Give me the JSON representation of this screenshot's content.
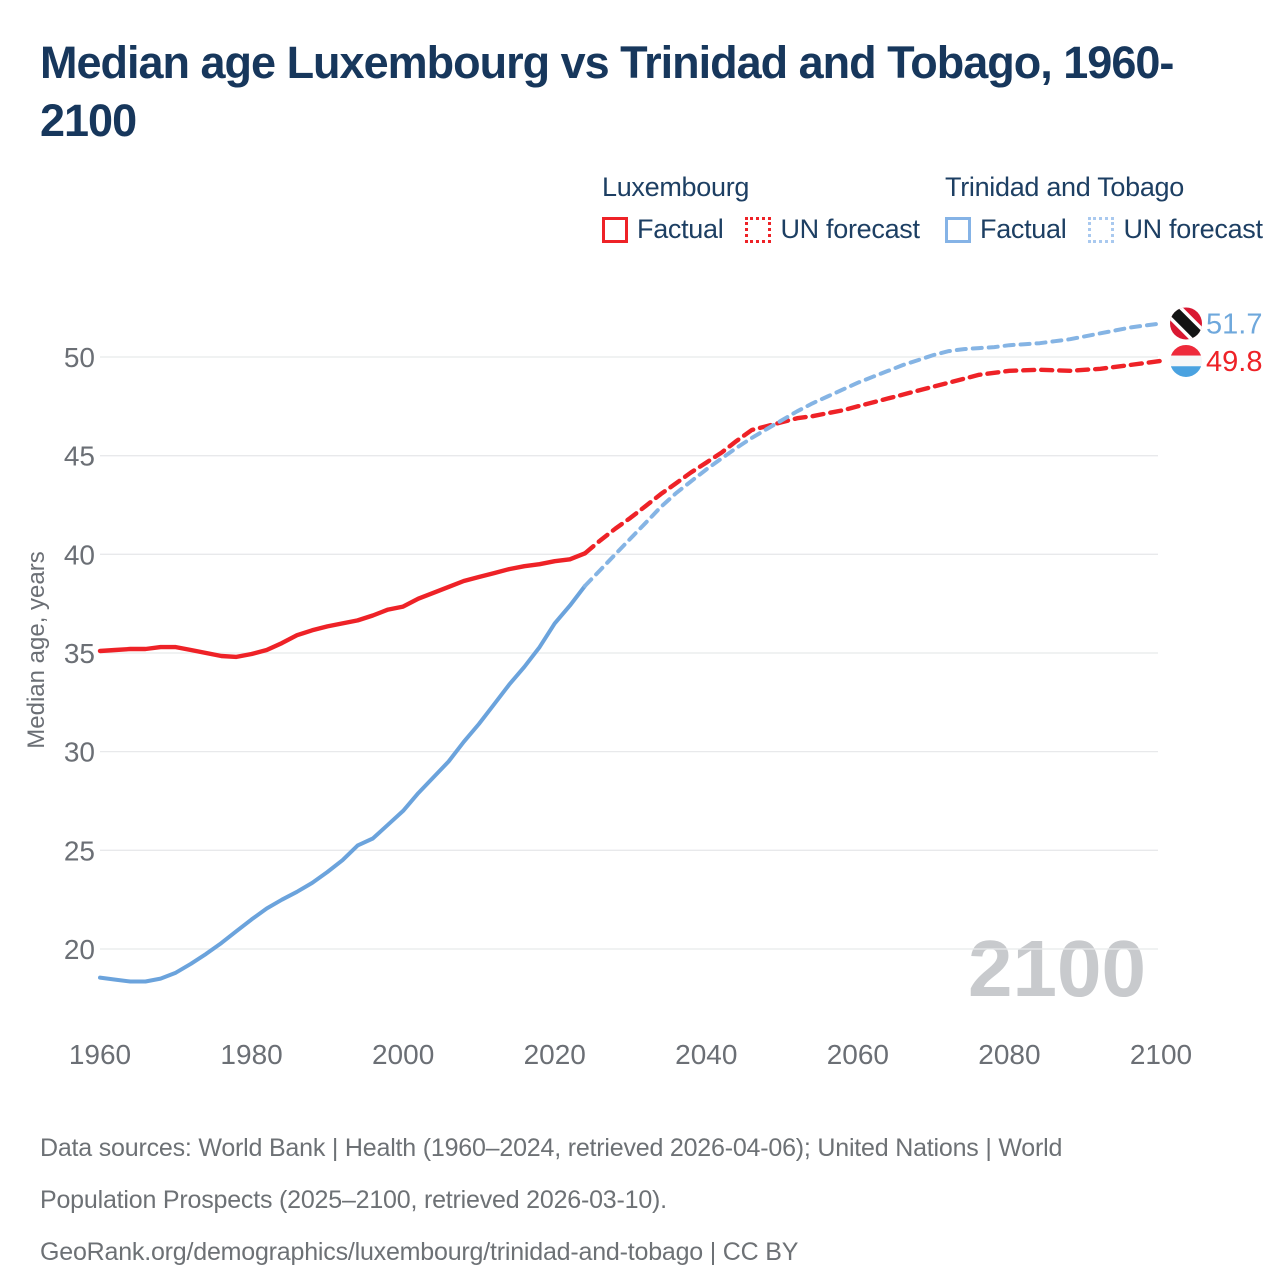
{
  "title": {
    "lines": [
      "Median age Luxembourg vs Trinidad and Tobago, 1960-",
      "2100"
    ]
  },
  "legend": {
    "groups": [
      {
        "label": "Luxembourg",
        "factual_label": "Factual",
        "forecast_label": "UN forecast",
        "factual_color": "#ee2227",
        "forecast_color": "#ee2227"
      },
      {
        "label": "Trinidad and Tobago",
        "factual_label": "Factual",
        "forecast_label": "UN forecast",
        "factual_color": "#85b3e6",
        "forecast_color": "#a9c9ef"
      }
    ]
  },
  "chart_data": {
    "type": "line",
    "xlabel": "",
    "ylabel": "Median age, years",
    "x_ticks": [
      1960,
      1980,
      2000,
      2020,
      2040,
      2060,
      2080,
      2100
    ],
    "y_ticks": [
      20,
      25,
      30,
      35,
      40,
      45,
      50
    ],
    "xlim": [
      1960,
      2100
    ],
    "ylim": [
      17,
      53
    ],
    "grid": "horizontal",
    "legend_position": "top-right",
    "watermark": "2100",
    "series": [
      {
        "name": "Luxembourg Factual",
        "key": "luxembourg-factual",
        "style": "solid",
        "color": "#ee2227",
        "width": 4.4,
        "points": [
          [
            1960,
            35.1
          ],
          [
            1962,
            35.15
          ],
          [
            1964,
            35.2
          ],
          [
            1966,
            35.2
          ],
          [
            1968,
            35.3
          ],
          [
            1970,
            35.3
          ],
          [
            1972,
            35.15
          ],
          [
            1974,
            35.0
          ],
          [
            1976,
            34.85
          ],
          [
            1978,
            34.8
          ],
          [
            1980,
            34.95
          ],
          [
            1982,
            35.15
          ],
          [
            1984,
            35.5
          ],
          [
            1986,
            35.9
          ],
          [
            1988,
            36.15
          ],
          [
            1990,
            36.35
          ],
          [
            1992,
            36.5
          ],
          [
            1994,
            36.65
          ],
          [
            1996,
            36.9
          ],
          [
            1998,
            37.2
          ],
          [
            2000,
            37.35
          ],
          [
            2002,
            37.75
          ],
          [
            2004,
            38.05
          ],
          [
            2006,
            38.35
          ],
          [
            2008,
            38.65
          ],
          [
            2010,
            38.85
          ],
          [
            2012,
            39.05
          ],
          [
            2014,
            39.25
          ],
          [
            2016,
            39.4
          ],
          [
            2018,
            39.5
          ],
          [
            2020,
            39.65
          ],
          [
            2022,
            39.75
          ],
          [
            2024,
            40.05
          ]
        ]
      },
      {
        "name": "Luxembourg UN forecast",
        "key": "luxembourg-forecast",
        "style": "dashed",
        "color": "#ee2227",
        "width": 4.4,
        "dash": "11 7",
        "points": [
          [
            2024,
            40.05
          ],
          [
            2026,
            40.7
          ],
          [
            2028,
            41.3
          ],
          [
            2030,
            41.85
          ],
          [
            2032,
            42.45
          ],
          [
            2034,
            43.05
          ],
          [
            2036,
            43.6
          ],
          [
            2038,
            44.15
          ],
          [
            2040,
            44.65
          ],
          [
            2042,
            45.15
          ],
          [
            2044,
            45.75
          ],
          [
            2046,
            46.3
          ],
          [
            2048,
            46.5
          ],
          [
            2050,
            46.7
          ],
          [
            2052,
            46.9
          ],
          [
            2054,
            47.0
          ],
          [
            2056,
            47.15
          ],
          [
            2058,
            47.3
          ],
          [
            2060,
            47.5
          ],
          [
            2062,
            47.7
          ],
          [
            2064,
            47.9
          ],
          [
            2066,
            48.1
          ],
          [
            2068,
            48.3
          ],
          [
            2070,
            48.5
          ],
          [
            2072,
            48.7
          ],
          [
            2074,
            48.9
          ],
          [
            2076,
            49.1
          ],
          [
            2078,
            49.2
          ],
          [
            2080,
            49.3
          ],
          [
            2084,
            49.35
          ],
          [
            2088,
            49.3
          ],
          [
            2092,
            49.4
          ],
          [
            2096,
            49.6
          ],
          [
            2100,
            49.8
          ]
        ]
      },
      {
        "name": "Trinidad and Tobago Factual",
        "key": "trinidad-and-tobago-factual",
        "style": "solid",
        "color": "#6ba3dc",
        "width": 4,
        "points": [
          [
            1960,
            18.55
          ],
          [
            1962,
            18.45
          ],
          [
            1964,
            18.35
          ],
          [
            1966,
            18.35
          ],
          [
            1968,
            18.5
          ],
          [
            1970,
            18.8
          ],
          [
            1972,
            19.25
          ],
          [
            1974,
            19.75
          ],
          [
            1976,
            20.3
          ],
          [
            1978,
            20.9
          ],
          [
            1980,
            21.5
          ],
          [
            1982,
            22.05
          ],
          [
            1984,
            22.5
          ],
          [
            1986,
            22.9
          ],
          [
            1988,
            23.35
          ],
          [
            1990,
            23.9
          ],
          [
            1992,
            24.5
          ],
          [
            1994,
            25.25
          ],
          [
            1996,
            25.6
          ],
          [
            1998,
            26.3
          ],
          [
            2000,
            27.0
          ],
          [
            2002,
            27.9
          ],
          [
            2004,
            28.7
          ],
          [
            2006,
            29.5
          ],
          [
            2008,
            30.5
          ],
          [
            2010,
            31.4
          ],
          [
            2012,
            32.4
          ],
          [
            2014,
            33.4
          ],
          [
            2016,
            34.3
          ],
          [
            2018,
            35.3
          ],
          [
            2020,
            36.5
          ],
          [
            2022,
            37.4
          ],
          [
            2024,
            38.4
          ]
        ]
      },
      {
        "name": "Trinidad and Tobago UN forecast",
        "key": "trinidad-and-tobago-forecast",
        "style": "dashed",
        "color": "#85b4e4",
        "width": 4,
        "dash": "9 7",
        "points": [
          [
            2024,
            38.4
          ],
          [
            2026,
            39.2
          ],
          [
            2028,
            40.0
          ],
          [
            2030,
            40.8
          ],
          [
            2032,
            41.6
          ],
          [
            2034,
            42.4
          ],
          [
            2036,
            43.1
          ],
          [
            2038,
            43.7
          ],
          [
            2040,
            44.3
          ],
          [
            2042,
            44.85
          ],
          [
            2044,
            45.4
          ],
          [
            2046,
            45.9
          ],
          [
            2048,
            46.35
          ],
          [
            2050,
            46.8
          ],
          [
            2052,
            47.25
          ],
          [
            2054,
            47.65
          ],
          [
            2056,
            48.0
          ],
          [
            2058,
            48.35
          ],
          [
            2060,
            48.7
          ],
          [
            2062,
            49.0
          ],
          [
            2064,
            49.3
          ],
          [
            2066,
            49.6
          ],
          [
            2068,
            49.85
          ],
          [
            2070,
            50.1
          ],
          [
            2072,
            50.3
          ],
          [
            2074,
            50.4
          ],
          [
            2076,
            50.45
          ],
          [
            2078,
            50.5
          ],
          [
            2080,
            50.6
          ],
          [
            2082,
            50.65
          ],
          [
            2084,
            50.7
          ],
          [
            2086,
            50.8
          ],
          [
            2088,
            50.9
          ],
          [
            2090,
            51.05
          ],
          [
            2092,
            51.2
          ],
          [
            2094,
            51.35
          ],
          [
            2096,
            51.5
          ],
          [
            2098,
            51.6
          ],
          [
            2100,
            51.7
          ]
        ]
      }
    ],
    "end_labels": [
      {
        "flag": "trinidad-and-tobago",
        "value": "51.7",
        "color": "#6fa8dc"
      },
      {
        "flag": "luxembourg",
        "value": "49.8",
        "color": "#ee2227"
      }
    ],
    "flags": {
      "trinidad-and-tobago": {
        "field": "#d91832",
        "band": "#141414",
        "fimbriation": "#ffffff"
      },
      "luxembourg": {
        "top": "#ee2a3b",
        "middle": "#f6f7f8",
        "bottom": "#4aa2e0"
      }
    }
  },
  "footer": {
    "lines": [
      "Data sources: World Bank | Health (1960–2024, retrieved 2026-04-06); United Nations | World",
      "Population Prospects (2025–2100, retrieved 2026-03-10).",
      "GeoRank.org/demographics/luxembourg/trinidad-and-tobago | CC BY"
    ]
  },
  "colors": {
    "title_text": "#17375c",
    "legend_text": "#1d3f63",
    "axis_text": "#6b6f75",
    "grid_line": "#e8e9eb",
    "watermark_text": "#c8cacd",
    "luxembourg_line": "#ee2227",
    "trinidad_factual_line": "#6ba3dc",
    "trinidad_forecast_line": "#85b4e4",
    "background": "#ffffff"
  }
}
